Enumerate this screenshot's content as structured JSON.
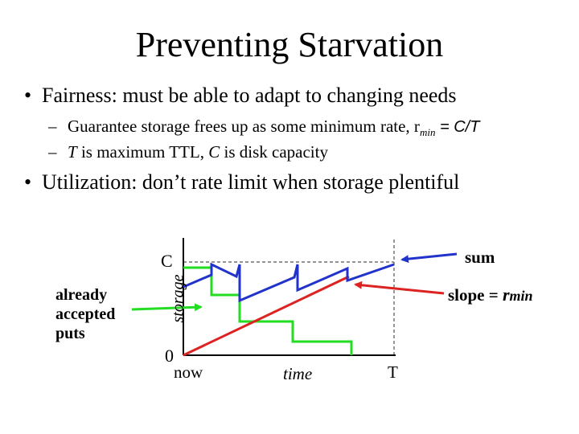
{
  "slide": {
    "title": "Preventing Starvation",
    "bullets": [
      {
        "text": "Fairness: must be able to adapt to changing needs",
        "subs": [
          {
            "pre": "Guarantee storage frees up as some minimum rate, r",
            "sub": "min",
            "post": " = C/T"
          },
          {
            "v1": "T",
            "mid": " is maximum TTL, ",
            "v2": "C",
            "post": " is disk capacity"
          }
        ]
      },
      {
        "text": "Utilization: don’t rate limit when storage plentiful"
      }
    ]
  },
  "diagram": {
    "labels": {
      "c_tick": "C",
      "zero_tick": "0",
      "y_axis": "storage",
      "now": "now",
      "time": "time",
      "t_mark": "T",
      "sum": "sum",
      "slope_pre": "slope = ",
      "slope_var": "r",
      "slope_sub": "min",
      "puts": [
        "already",
        "accepted",
        "puts"
      ]
    },
    "colors": {
      "sum_line": "#2233cc",
      "slope_line": "#dd2222",
      "puts_line": "#22dd22",
      "axis": "#000000",
      "guide": "#555555"
    }
  }
}
